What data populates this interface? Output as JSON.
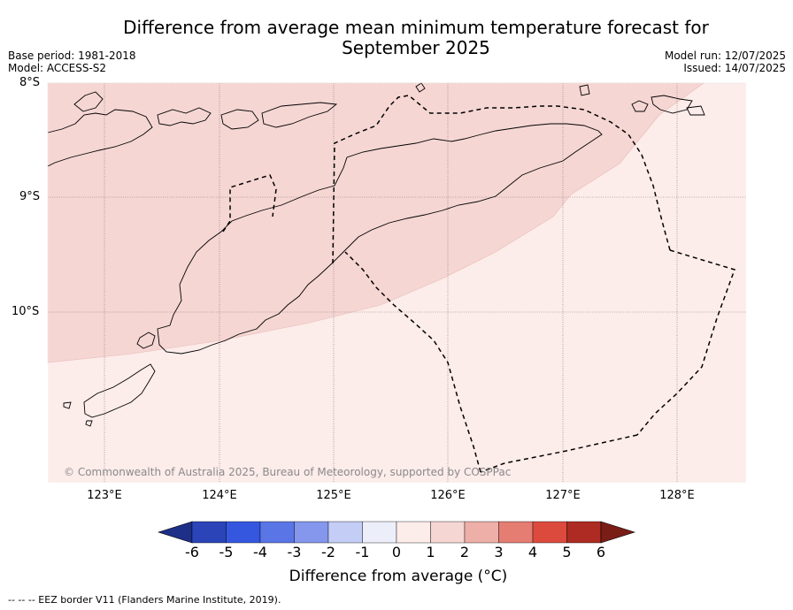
{
  "title_line1": "Difference from average mean minimum temperature forecast for",
  "title_line2": "September 2025",
  "base_period": "Base period: 1981-2018",
  "model": "Model: ACCESS-S2",
  "model_run": "Model run: 12/07/2025",
  "issued": "Issued: 14/07/2025",
  "lat_labels": [
    "8°S",
    "9°S",
    "10°S"
  ],
  "lon_labels": [
    "123°E",
    "124°E",
    "125°E",
    "126°E",
    "127°E",
    "128°E"
  ],
  "copyright": "© Commonwealth of Australia 2025, Bureau of Meteorology, supported by COSPPac",
  "colorbar": {
    "ticks": [
      "-6",
      "-5",
      "-4",
      "-3",
      "-2",
      "-1",
      "0",
      "1",
      "2",
      "3",
      "4",
      "5",
      "6"
    ],
    "colors": [
      "#1e2f87",
      "#2b44b8",
      "#3557e0",
      "#5a75e6",
      "#8497ec",
      "#c3cdf5",
      "#eceff9",
      "#fcecea",
      "#f5d6d3",
      "#eeafa9",
      "#e57d72",
      "#dc4a3e",
      "#ad2b22",
      "#7a1d17"
    ],
    "label": "Difference from average (°C)"
  },
  "legend_text": "-- -- -- EEZ border V11 (Flanders Marine Institute, 2019).",
  "map_fill": {
    "zone_1_2": "#f5d6d3",
    "zone_0_1": "#fcecea"
  }
}
